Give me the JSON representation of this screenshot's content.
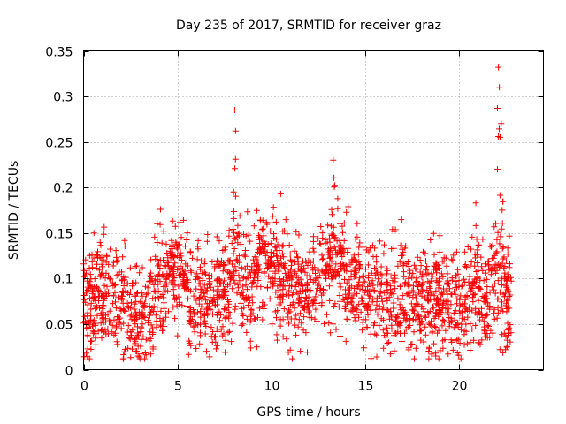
{
  "chart_data": {
    "type": "scatter",
    "title": "Day 235 of 2017, SRMTID for receiver graz",
    "xlabel": "GPS time / hours",
    "ylabel": "SRMTID / TECUs",
    "xlim": [
      0,
      24.5
    ],
    "ylim": [
      0,
      0.35
    ],
    "xticks": [
      0,
      5,
      10,
      15,
      20
    ],
    "xtick_labels": [
      "0",
      "5",
      "10",
      "15",
      "20"
    ],
    "yticks": [
      0,
      0.05,
      0.1,
      0.15,
      0.2,
      0.25,
      0.3,
      0.35
    ],
    "ytick_labels": [
      "0",
      "0.05",
      "0.1",
      "0.15",
      "0.2",
      "0.25",
      "0.3",
      "0.35"
    ],
    "grid": true,
    "marker": "+",
    "series": [
      {
        "name": "SRMTID",
        "color": "#ff0000",
        "x_range": [
          0,
          22.8
        ],
        "n_points": 2200,
        "baseline": [
          [
            0,
            0.075
          ],
          [
            1,
            0.08
          ],
          [
            2,
            0.07
          ],
          [
            3,
            0.055
          ],
          [
            4,
            0.085
          ],
          [
            5,
            0.1
          ],
          [
            6,
            0.075
          ],
          [
            7,
            0.08
          ],
          [
            8,
            0.1
          ],
          [
            9,
            0.09
          ],
          [
            10,
            0.115
          ],
          [
            11,
            0.085
          ],
          [
            12,
            0.08
          ],
          [
            13,
            0.1
          ],
          [
            14,
            0.11
          ],
          [
            15,
            0.085
          ],
          [
            16,
            0.08
          ],
          [
            17,
            0.085
          ],
          [
            18,
            0.075
          ],
          [
            19,
            0.075
          ],
          [
            20,
            0.07
          ],
          [
            21,
            0.085
          ],
          [
            22,
            0.09
          ],
          [
            22.8,
            0.07
          ]
        ],
        "bursts": [
          {
            "center": 8.1,
            "width": 0.25,
            "peak": 0.285
          },
          {
            "center": 9.5,
            "width": 0.5,
            "peak": 0.175
          },
          {
            "center": 13.4,
            "width": 0.5,
            "peak": 0.23
          },
          {
            "center": 4.9,
            "width": 0.6,
            "peak": 0.16
          },
          {
            "center": 22.2,
            "width": 0.25,
            "peak": 0.33
          },
          {
            "center": 20.9,
            "width": 0.15,
            "peak": 0.185
          }
        ],
        "notable_points": [
          {
            "x": 8.05,
            "y": 0.285
          },
          {
            "x": 8.1,
            "y": 0.262
          },
          {
            "x": 13.3,
            "y": 0.23
          },
          {
            "x": 22.1,
            "y": 0.332
          },
          {
            "x": 22.15,
            "y": 0.31
          },
          {
            "x": 22.05,
            "y": 0.287
          },
          {
            "x": 22.1,
            "y": 0.256
          },
          {
            "x": 22.05,
            "y": 0.22
          },
          {
            "x": 4.1,
            "y": 0.176
          },
          {
            "x": 10.5,
            "y": 0.193
          },
          {
            "x": 20.9,
            "y": 0.183
          },
          {
            "x": 2.9,
            "y": 0.015
          }
        ]
      }
    ]
  }
}
